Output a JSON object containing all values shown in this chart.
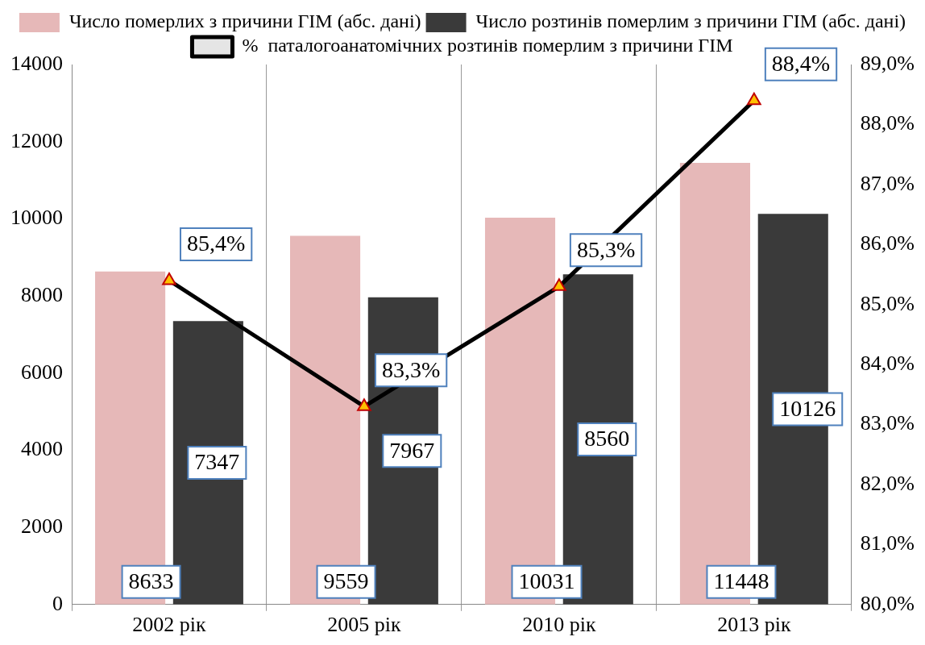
{
  "chart_data": {
    "type": "bar",
    "categories": [
      "2002 рік",
      "2005 рік",
      "2010 рік",
      "2013 рік"
    ],
    "series": [
      {
        "name": "Число померлих з причини ГІМ (абс. дані)",
        "color": "#e6b8b8",
        "values": [
          8633,
          9559,
          10031,
          11448
        ],
        "value_labels": [
          "8633",
          "9559",
          "10031",
          "11448"
        ]
      },
      {
        "name": "Число розтинів померлим з причини ГІМ (абс. дані)",
        "color": "#3a3a3a",
        "values": [
          7347,
          7967,
          8560,
          10126
        ],
        "value_labels": [
          "7347",
          "7967",
          "8560",
          "10126"
        ]
      },
      {
        "name": "%  паталогоанатомічних розтинів померлим з причини ГІМ",
        "type": "line",
        "axis": "y2",
        "color": "#000000",
        "marker": "triangle",
        "values": [
          85.4,
          83.3,
          85.3,
          88.4
        ],
        "value_labels": [
          "85,4%",
          "83,3%",
          "85,3%",
          "88,4%"
        ]
      }
    ],
    "ylim": [
      0,
      14000
    ],
    "yticks": [
      0,
      2000,
      4000,
      6000,
      8000,
      10000,
      12000,
      14000
    ],
    "y2lim": [
      80,
      89
    ],
    "y2ticks": [
      {
        "value": 80,
        "label": "80,0%"
      },
      {
        "value": 81,
        "label": "81,0%"
      },
      {
        "value": 82,
        "label": "82,0%"
      },
      {
        "value": 83,
        "label": "83,0%"
      },
      {
        "value": 84,
        "label": "84,0%"
      },
      {
        "value": 85,
        "label": "85,0%"
      },
      {
        "value": 86,
        "label": "86,0%"
      },
      {
        "value": 87,
        "label": "87,0%"
      },
      {
        "value": 88,
        "label": "88,0%"
      },
      {
        "value": 89,
        "label": "89,0%"
      }
    ],
    "grid": "x",
    "legend": "top"
  }
}
